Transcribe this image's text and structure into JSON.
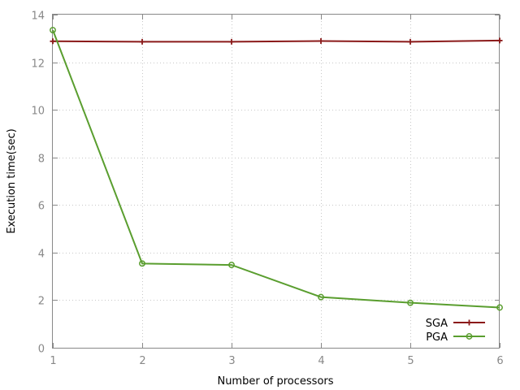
{
  "chart_data": {
    "type": "line",
    "xlabel": "Number of processors",
    "ylabel": "Execution time(sec)",
    "xlim": [
      1,
      6
    ],
    "ylim": [
      0,
      14
    ],
    "xticks": [
      "1",
      "2",
      "3",
      "4",
      "5",
      "6"
    ],
    "yticks": [
      "0",
      "2",
      "4",
      "6",
      "8",
      "10",
      "12",
      "14"
    ],
    "grid": true,
    "legend_position": "bottom-right",
    "x": [
      1,
      2,
      3,
      4,
      5,
      6
    ],
    "series": [
      {
        "name": "SGA",
        "color": "#8b1a1a",
        "marker": "plus",
        "values": [
          12.88,
          12.86,
          12.86,
          12.89,
          12.86,
          12.91
        ]
      },
      {
        "name": "PGA",
        "color": "#5a9e2f",
        "marker": "circle",
        "values": [
          13.35,
          3.54,
          3.48,
          2.13,
          1.89,
          1.69
        ]
      }
    ]
  }
}
